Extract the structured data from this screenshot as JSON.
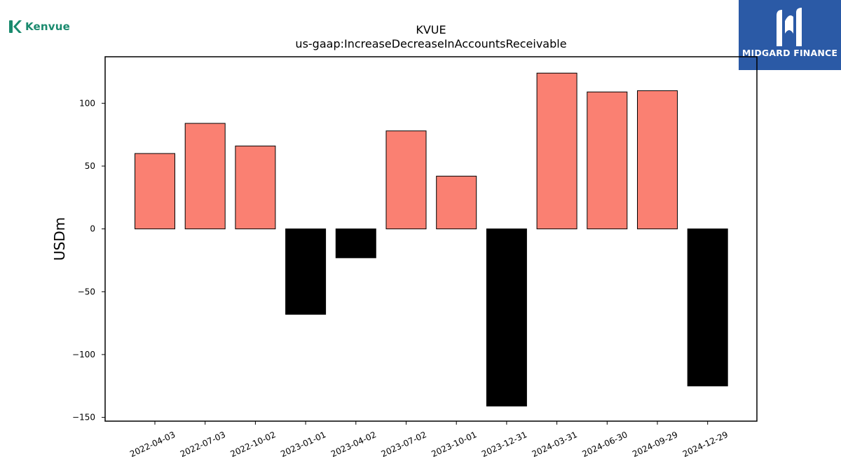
{
  "logos": {
    "left_brand": "Kenvue",
    "right_brand": "MIDGARD FINANCE",
    "left_icon": "kenvue-k-mark",
    "right_icon": "midgard-m-mark"
  },
  "colors": {
    "positive_bar": "#fa8072",
    "negative_bar": "#000000",
    "kenvue_green": "#1a8a6e",
    "midgard_blue": "#2b5aa6"
  },
  "chart_data": {
    "type": "bar",
    "title": "KVUE",
    "subtitle": "us-gaap:IncreaseDecreaseInAccountsReceivable",
    "xlabel": "",
    "ylabel": "USDm",
    "ylim": [
      -153,
      137
    ],
    "yticks": [
      -150,
      -100,
      -50,
      0,
      50,
      100
    ],
    "ytick_labels": [
      "−150",
      "−100",
      "−50",
      "0",
      "50",
      "100"
    ],
    "grid": false,
    "legend": "none",
    "categories": [
      "2022-04-03",
      "2022-07-03",
      "2022-10-02",
      "2023-01-01",
      "2023-04-02",
      "2023-07-02",
      "2023-10-01",
      "2023-12-31",
      "2024-03-31",
      "2024-06-30",
      "2024-09-29",
      "2024-12-29"
    ],
    "values": [
      60,
      84,
      66,
      -68,
      -23,
      78,
      42,
      -141,
      124,
      109,
      110,
      -125
    ]
  }
}
